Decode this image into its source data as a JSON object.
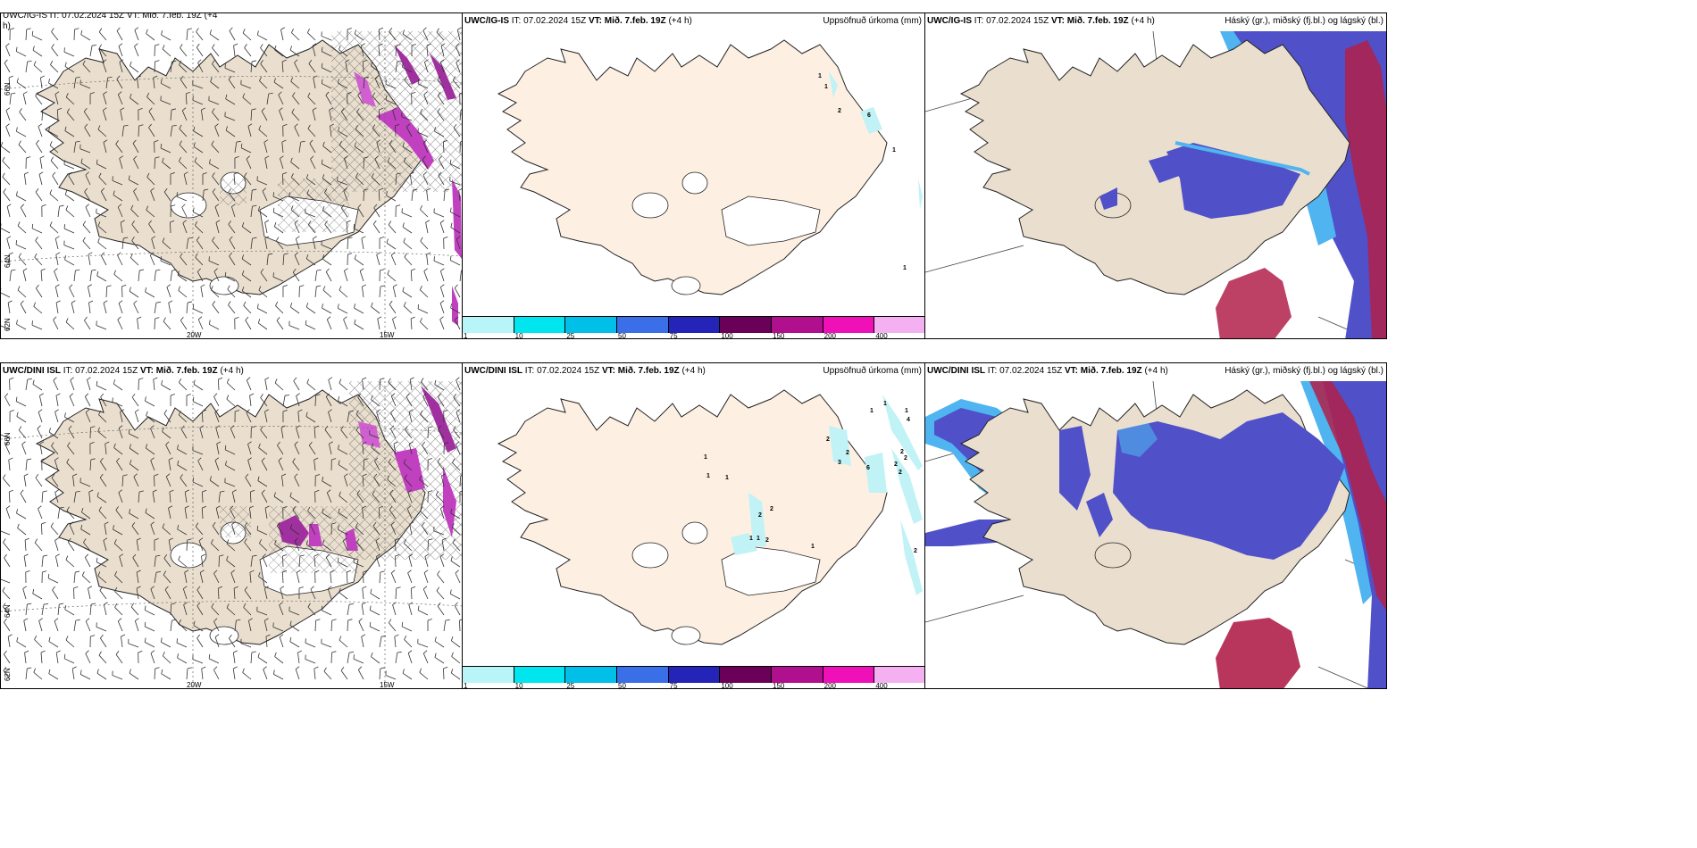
{
  "panels": {
    "p1": {
      "cut_line1": "UWC/IG-IS IT: 07.02.2024 15Z VT: Mið. 7.feb. 19Z (+4",
      "cut_line2": "h)"
    },
    "p2": {
      "model": "UWC/IG-IS",
      "it": "IT: 07.02.2024 15Z",
      "vt": "VT: Mið. 7.feb. 19Z",
      "lead": "(+4 h)",
      "right": "Uppsöfnuð úrkoma (mm)"
    },
    "p3": {
      "model": "UWC/IG-IS",
      "it": "IT: 07.02.2024 15Z",
      "vt": "VT: Mið. 7.feb. 19Z",
      "lead": "(+4 h)",
      "right": "Háský (gr.), miðský (fj.bl.) og lágský (bl.)"
    },
    "p4": {
      "model": "UWC/DINI ISL",
      "it": "IT: 07.02.2024 15Z",
      "vt": "VT: Mið. 7.feb. 19Z",
      "lead": "(+4 h)"
    },
    "p5": {
      "model": "UWC/DINI ISL",
      "it": "IT: 07.02.2024 15Z",
      "vt": "VT: Mið. 7.feb. 19Z",
      "lead": "(+4 h)",
      "right": "Uppsöfnuð úrkoma (mm)"
    },
    "p6": {
      "model": "UWC/DINI ISL",
      "it": "IT: 07.02.2024 15Z",
      "vt": "VT: Mið. 7.feb. 19Z",
      "lead": "(+4 h)",
      "right": "Háský (gr.), miðský (fj.bl.) og lágský (bl.)"
    }
  },
  "grid_labels": {
    "lat66": "66N",
    "lat64": "64N",
    "lat62": "62N",
    "lon20": "20W",
    "lon15": "15W"
  },
  "colorbar": {
    "labels": [
      "1",
      "10",
      "25",
      "50",
      "75",
      "100",
      "150",
      "200",
      "400"
    ],
    "colors": [
      "#b8f5f8",
      "#00e5ee",
      "#00bfe8",
      "#3a6fe8",
      "#2424b8",
      "#6a0058",
      "#b0108e",
      "#f010b8",
      "#f4b0f0"
    ]
  },
  "precip_labels_top": [
    "1",
    "1",
    "2",
    "6",
    "1",
    "1"
  ],
  "precip_labels_bottom": [
    "1",
    "1",
    "4",
    "1",
    "1",
    "1",
    "2",
    "2",
    "6",
    "2",
    "2",
    "2",
    "2",
    "3",
    "2",
    "1",
    "2",
    "1",
    "2",
    "1",
    "1",
    "2"
  ],
  "colors": {
    "land": "#fdf0e2",
    "land_wind": "#eadfce",
    "cloud_low": "#5050c8",
    "cloud_mid": "#4fb4ef",
    "cloud_high": "#b0204a",
    "precip_light": "#c0f2f6",
    "hatch": "#555555",
    "convection": "#c040c0"
  }
}
